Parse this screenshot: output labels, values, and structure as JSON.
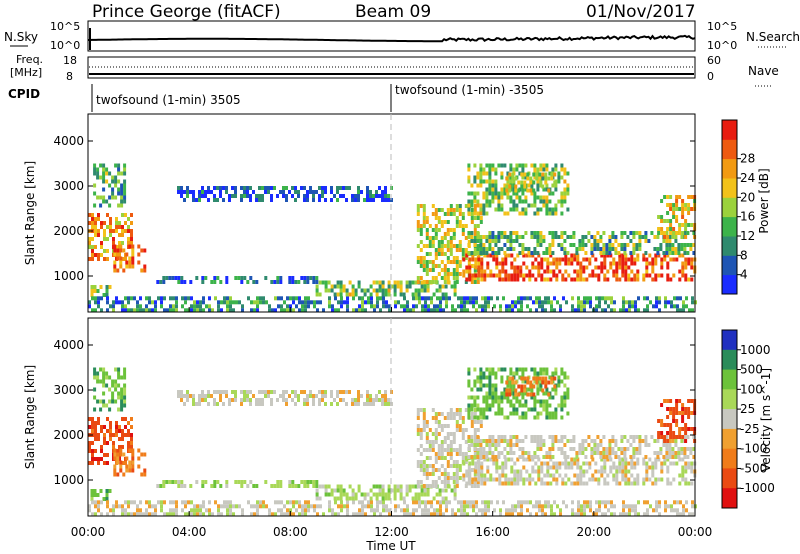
{
  "header": {
    "station": "Prince George (fitACF)",
    "beam": "Beam 09",
    "date": "01/Nov/2017"
  },
  "strip_labels": {
    "nsky": "N.Sky",
    "nsky_top": "10^5",
    "nsky_bottom": "10^0",
    "nsearch": "N.Search",
    "nsearch_top": "10^5",
    "nsearch_bottom": "10^0",
    "freq_line1": "Freq.",
    "freq_line2": "[MHz]",
    "freq_top": "18",
    "freq_bottom": "8",
    "nave": "Nave",
    "nave_top": "60",
    "nave_bottom": "0",
    "cpid": "CPID"
  },
  "cpid_labels": [
    "twofsound (1-min) 3505",
    "twofsound (1-min) -3505"
  ],
  "chart_data": [
    {
      "name": "power",
      "type": "heatmap",
      "ylabel": "Slant Range [km]",
      "ylim": [
        200,
        4600
      ],
      "yticks": [
        "1000",
        "2000",
        "3000",
        "4000"
      ],
      "colorbar_label": "Power [dB]",
      "colorbar_ticks": [
        "4",
        "8",
        "12",
        "16",
        "20",
        "24",
        "28"
      ],
      "colors": [
        "#1a2cff",
        "#1e55b4",
        "#2f8a6e",
        "#3cb34a",
        "#9bd23c",
        "#f2c21a",
        "#f29a12",
        "#ee5a10",
        "#e81c10"
      ]
    },
    {
      "name": "velocity",
      "type": "heatmap",
      "ylabel": "Slant Range [km]",
      "ylim": [
        200,
        4600
      ],
      "yticks": [
        "1000",
        "2000",
        "3000",
        "4000"
      ],
      "xlabel": "Time UT",
      "xticks": [
        "00:00",
        "04:00",
        "08:00",
        "12:00",
        "16:00",
        "20:00",
        "00:00"
      ],
      "colorbar_label": "Velocity [m s^-1]",
      "colorbar_ticks": [
        "1000",
        "500",
        "100",
        "25",
        "-25",
        "-100",
        "-500",
        "-1000"
      ],
      "colors": [
        "#2030c0",
        "#2a8c5a",
        "#6cc23a",
        "#a9d858",
        "#c8c8c0",
        "#f0a030",
        "#f07c1a",
        "#ea4a12",
        "#e01010"
      ]
    }
  ]
}
